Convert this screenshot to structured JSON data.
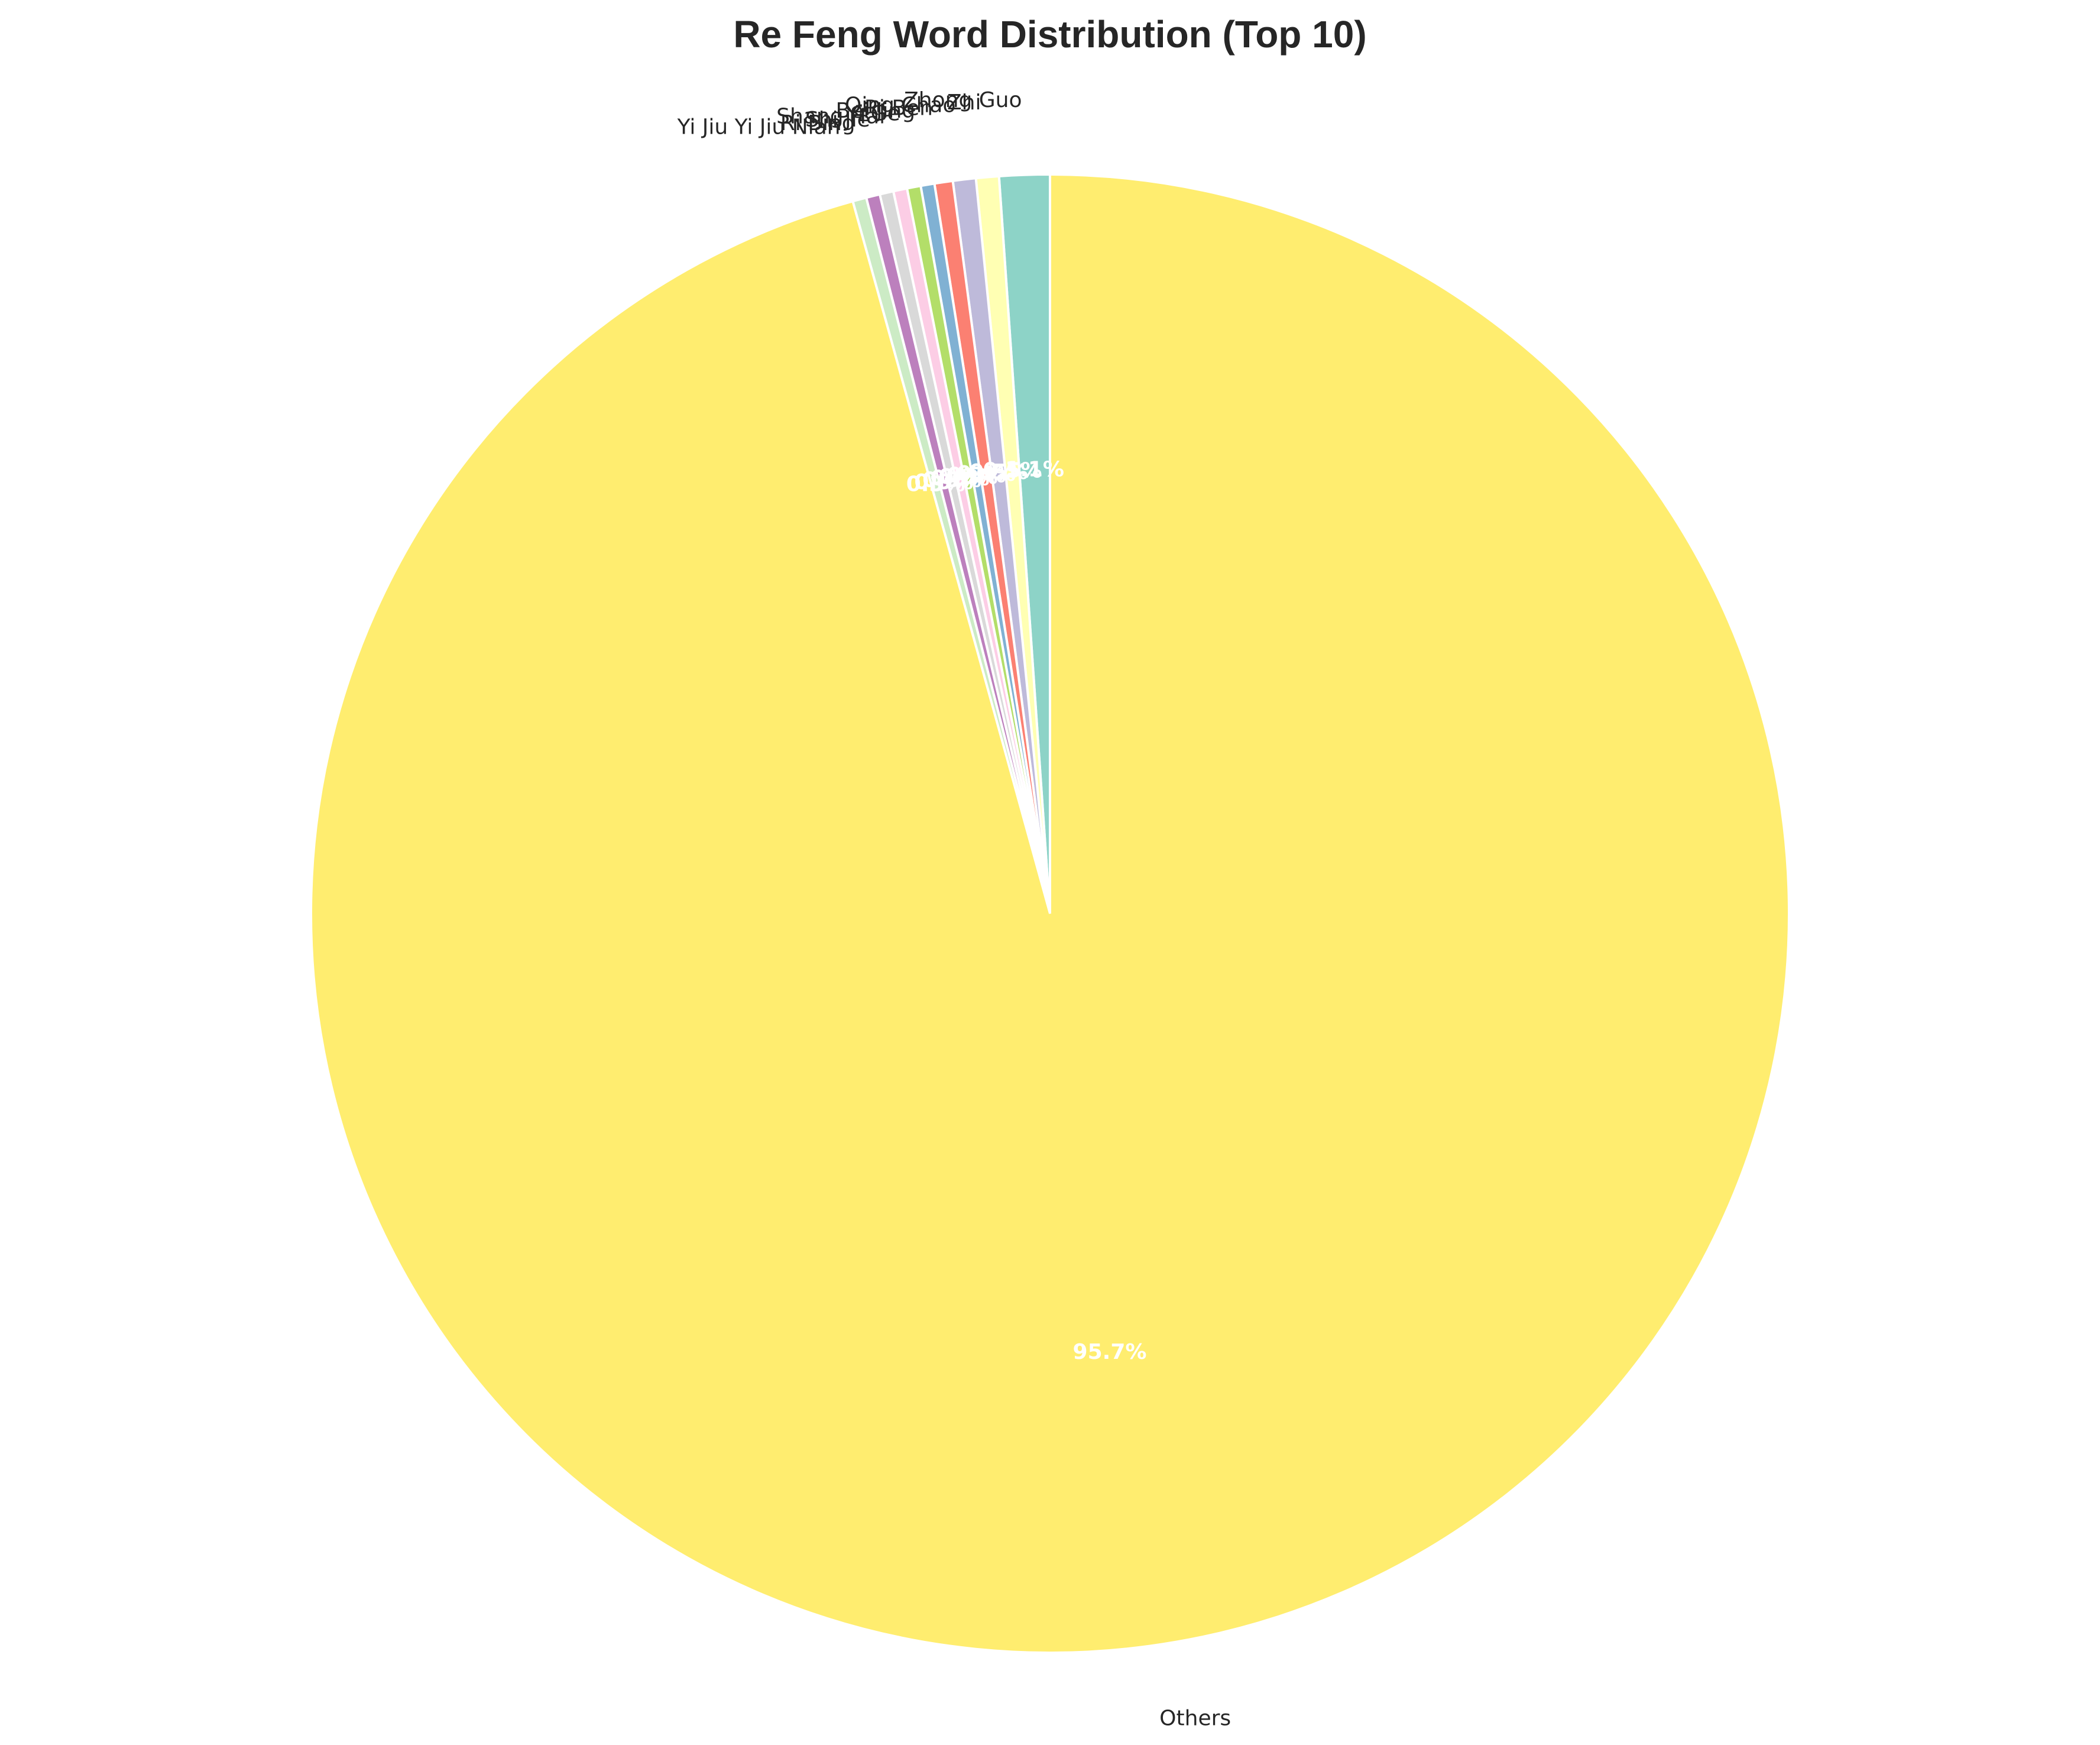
{
  "chart_data": {
    "type": "pie",
    "title": "Re Feng Word Distribution (Top 10)",
    "categories": [
      "Zhong Guo",
      "Zhi",
      "Qing Chao",
      "Ri Ben",
      "Bei Jing",
      "Yi Ge",
      "Shang Hai",
      "Shi Jie",
      "Ri Bing",
      "Yi Jiu Yi Jiu Nian",
      "Others"
    ],
    "values": [
      1.1,
      0.5,
      0.5,
      0.4,
      0.3,
      0.3,
      0.3,
      0.3,
      0.3,
      0.3,
      95.7
    ],
    "percent_labels": [
      "1.1%",
      "0.5%",
      "0.5%",
      "0.4%",
      "0.3%",
      "0.3%",
      "0.3%",
      "0.3%",
      "0.3%",
      "0.3%",
      "95.7%"
    ],
    "colors": [
      "#8dd3c7",
      "#ffffb3",
      "#bebada",
      "#fb8072",
      "#80b1d3",
      "#b3de69",
      "#fccde5",
      "#d9d9d9",
      "#bc80bd",
      "#ccebc5",
      "#ffed6f"
    ],
    "start": "top",
    "direction": "counterclockwise",
    "legend": "none"
  }
}
